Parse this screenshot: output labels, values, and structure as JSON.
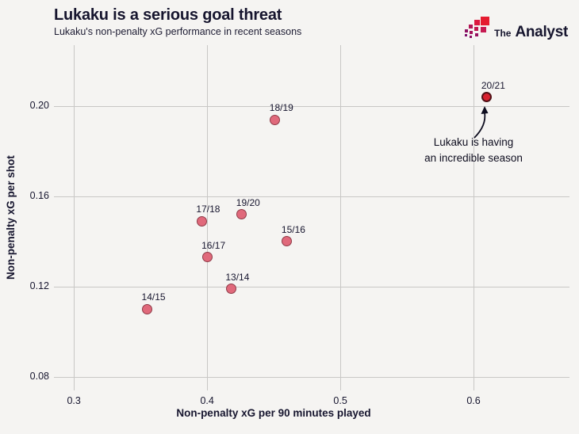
{
  "header": {
    "title": "Lukaku is a serious goal threat",
    "subtitle": "Lukaku's non-penalty xG performance in recent seasons",
    "brand": {
      "the": "The",
      "name": "Analyst"
    }
  },
  "chart_data": {
    "type": "scatter",
    "title": "Lukaku is a serious goal threat",
    "subtitle": "Lukaku's non-penalty xG performance in recent seasons",
    "xlabel": "Non-penalty xG per 90 minutes played",
    "ylabel": "Non-penalty xG per shot",
    "xlim": [
      0.285,
      0.672
    ],
    "ylim": [
      0.074,
      0.227
    ],
    "grid": true,
    "x_ticks": [
      {
        "v": 0.3,
        "label": "0.3"
      },
      {
        "v": 0.4,
        "label": "0.4"
      },
      {
        "v": 0.5,
        "label": "0.5"
      },
      {
        "v": 0.6,
        "label": "0.6"
      }
    ],
    "y_ticks": [
      {
        "v": 0.2,
        "label": "0.20"
      },
      {
        "v": 0.16,
        "label": "0.16"
      },
      {
        "v": 0.12,
        "label": "0.12"
      },
      {
        "v": 0.08,
        "label": "0.08"
      }
    ],
    "points": [
      {
        "label": "13/14",
        "x": 0.418,
        "y": 0.119,
        "highlight": false
      },
      {
        "label": "14/15",
        "x": 0.355,
        "y": 0.11,
        "highlight": false
      },
      {
        "label": "15/16",
        "x": 0.46,
        "y": 0.14,
        "highlight": false
      },
      {
        "label": "16/17",
        "x": 0.4,
        "y": 0.133,
        "highlight": false
      },
      {
        "label": "17/18",
        "x": 0.396,
        "y": 0.149,
        "highlight": false
      },
      {
        "label": "18/19",
        "x": 0.451,
        "y": 0.194,
        "highlight": false
      },
      {
        "label": "19/20",
        "x": 0.426,
        "y": 0.152,
        "highlight": false
      },
      {
        "label": "20/21",
        "x": 0.61,
        "y": 0.204,
        "highlight": true
      }
    ],
    "annotation_lines": [
      "Lukaku is having",
      "an incredible season"
    ],
    "colors": {
      "background": "#f5f4f2",
      "text": "#16152e",
      "grid": "#c8c7c5",
      "point_fill": "#e0697b",
      "point_stroke": "#8e3a47",
      "highlight_fill": "#d7202e",
      "highlight_stroke": "#501016"
    }
  }
}
